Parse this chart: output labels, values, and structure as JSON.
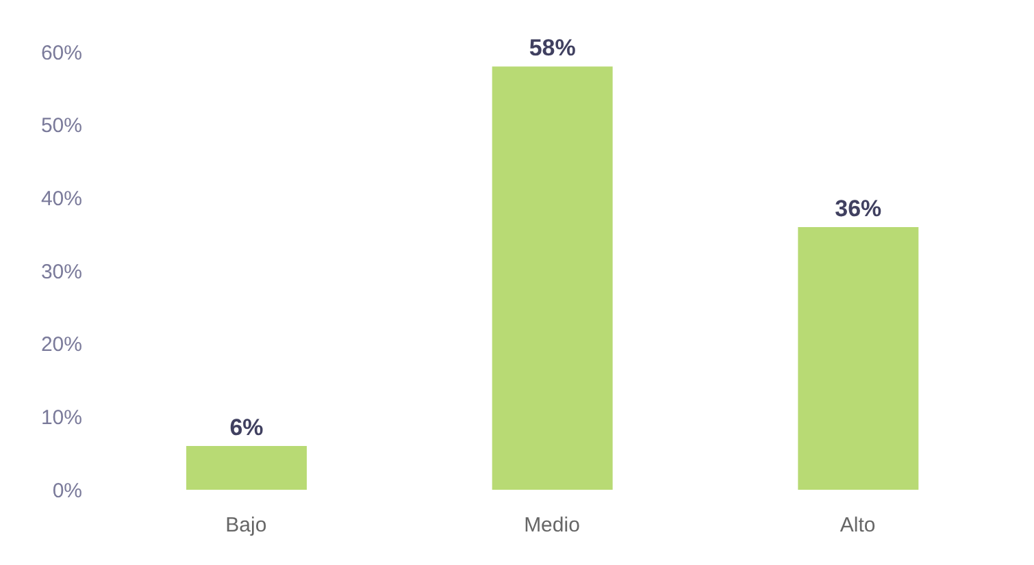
{
  "chart_data": {
    "type": "bar",
    "categories": [
      "Bajo",
      "Medio",
      "Alto"
    ],
    "values": [
      6,
      58,
      36
    ],
    "color": "#b8da74",
    "value_labels": [
      "6%",
      "58%",
      "36%"
    ],
    "ylim": [
      0,
      60
    ],
    "yticks": [
      {
        "value": 0,
        "label": "0%"
      },
      {
        "value": 10,
        "label": "10%"
      },
      {
        "value": 20,
        "label": "20%"
      },
      {
        "value": 30,
        "label": "30%"
      },
      {
        "value": 40,
        "label": "40%"
      },
      {
        "value": 50,
        "label": "50%"
      },
      {
        "value": 60,
        "label": "60%"
      }
    ],
    "grid": false,
    "legend": false
  }
}
